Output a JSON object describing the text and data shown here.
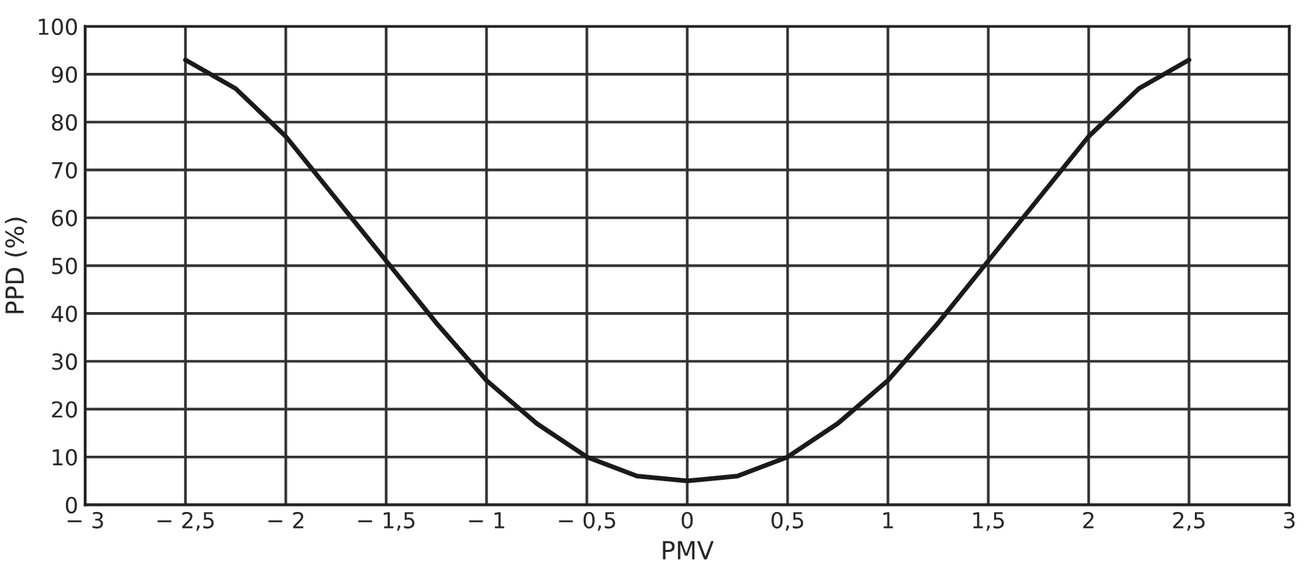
{
  "chart_data": {
    "type": "line",
    "xlabel": "PMV",
    "ylabel": "PPD (%)",
    "x": [
      -2.5,
      -2.25,
      -2,
      -1.75,
      -1.5,
      -1.25,
      -1,
      -0.75,
      -0.5,
      -0.25,
      0,
      0.25,
      0.5,
      0.75,
      1,
      1.25,
      1.5,
      1.75,
      2,
      2.25,
      2.5
    ],
    "series": [
      {
        "color": "#1a1a1a",
        "values": [
          93,
          87,
          77,
          64,
          51,
          38,
          26,
          17,
          10,
          6,
          5,
          6,
          10,
          17,
          26,
          38,
          51,
          64,
          77,
          87,
          93
        ]
      }
    ],
    "xlim": [
      -3,
      3
    ],
    "xticks": [
      {
        "value": -3,
        "label": "− 3"
      },
      {
        "value": -2.5,
        "label": "− 2,5"
      },
      {
        "value": -2,
        "label": "− 2"
      },
      {
        "value": -1.5,
        "label": "− 1,5"
      },
      {
        "value": -1,
        "label": "− 1"
      },
      {
        "value": -0.5,
        "label": "− 0,5"
      },
      0,
      {
        "value": 0.5,
        "label": "0,5"
      },
      1,
      {
        "value": 1.5,
        "label": "1,5"
      },
      2,
      {
        "value": 2.5,
        "label": "2,5"
      },
      3
    ],
    "ylim": [
      0,
      100
    ],
    "yticks": [
      0,
      10,
      20,
      30,
      40,
      50,
      60,
      70,
      80,
      90,
      100
    ],
    "grid": true,
    "marker": "none",
    "line_style": "solid"
  }
}
